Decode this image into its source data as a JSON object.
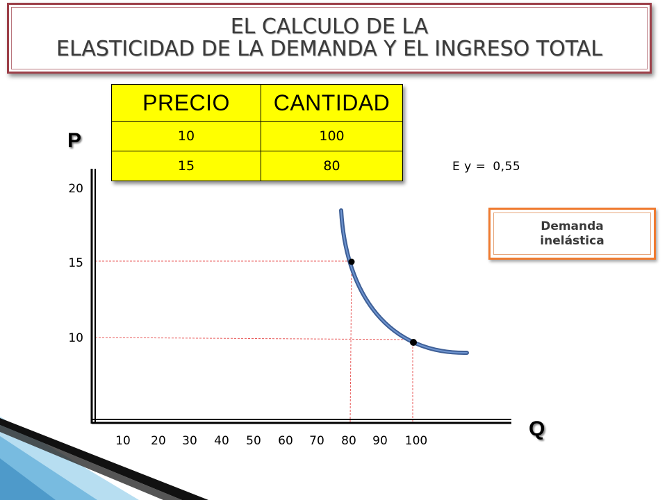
{
  "title": {
    "line1": "EL CALCULO DE LA",
    "line2": "ELASTICIDAD DE LA DEMANDA Y EL INGRESO TOTAL"
  },
  "table": {
    "headers": [
      "PRECIO",
      "CANTIDAD"
    ],
    "rows": [
      [
        "10",
        "100"
      ],
      [
        "15",
        "80"
      ]
    ]
  },
  "axes": {
    "y_label": "P",
    "x_label": "Q",
    "y_ticks": [
      "20",
      "15",
      "10"
    ],
    "x_ticks": [
      "10",
      "20",
      "30",
      "40",
      "50",
      "60",
      "70",
      "80",
      "90",
      "100"
    ]
  },
  "elasticity": {
    "label": "E y  =",
    "value": "0,55"
  },
  "demand_label": "Demanda inelástica",
  "points": [
    {
      "q": 80,
      "p": 15
    },
    {
      "q": 100,
      "p": 10
    }
  ],
  "colors": {
    "table_fill": "#ffff00",
    "title_border": "#9c3f48",
    "demand_box_border": "#ef7a2f",
    "curve": "#4a6fad",
    "guide_lines": "#e85a5a",
    "corner_accent": "#4fa3d6"
  }
}
